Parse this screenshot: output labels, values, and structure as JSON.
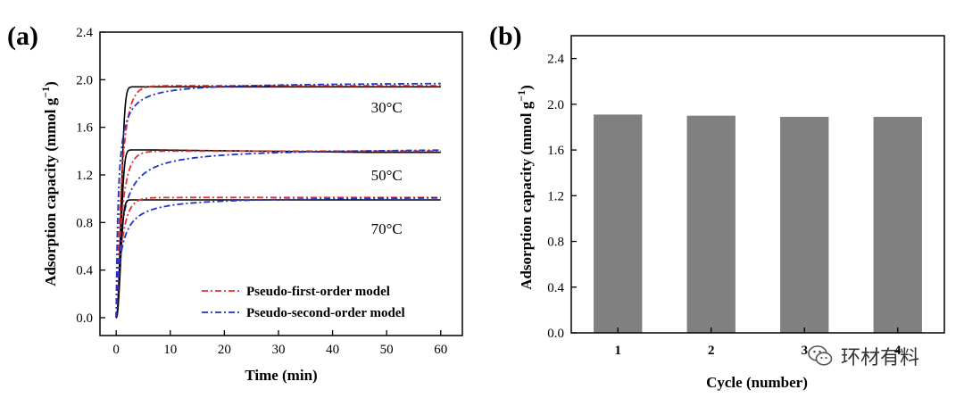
{
  "colors": {
    "pfo": "#e8312f",
    "pso": "#2233c8",
    "exp": "#000000",
    "bar": "#808080"
  },
  "watermark": {
    "text": "环材有料",
    "icon": "wechat-icon"
  },
  "chart_data": [
    {
      "id": "a",
      "panel_label": "(a)",
      "type": "line",
      "xlabel": "Time (min)",
      "ylabel": "Adsorption capacity (mmol g",
      "ylabel_exp": "−1",
      "ylabel_close": ")",
      "xlim": [
        -3,
        64
      ],
      "ylim": [
        -0.15,
        2.4
      ],
      "xticks": [
        0,
        10,
        20,
        30,
        40,
        50,
        60
      ],
      "yticks": [
        0.0,
        0.4,
        0.8,
        1.2,
        1.6,
        2.0,
        2.4
      ],
      "ytick_labels": [
        "0.0",
        "0.4",
        "0.8",
        "1.2",
        "1.6",
        "2.0",
        "2.4"
      ],
      "legend": [
        {
          "label": "Pseudo-first-order model",
          "color_key": "pfo"
        },
        {
          "label": "Pseudo-second-order model",
          "color_key": "pso"
        }
      ],
      "annotations": [
        {
          "text": "30°C",
          "x": 50,
          "y": 1.77
        },
        {
          "text": "50°C",
          "x": 50,
          "y": 1.2
        },
        {
          "text": "70°C",
          "x": 50,
          "y": 0.75
        }
      ],
      "series": [
        {
          "name": "30°C experimental",
          "model": "exp",
          "qe": 1.94,
          "k": 1.6,
          "tail": 1.94
        },
        {
          "name": "30°C pseudo-first-order",
          "model": "pfo",
          "qe": 1.95,
          "k": 0.9
        },
        {
          "name": "30°C pseudo-second-order",
          "model": "pso",
          "qe": 1.98,
          "k": 1.3
        },
        {
          "name": "50°C experimental",
          "model": "exp",
          "qe": 1.41,
          "k": 1.8,
          "tail": 1.39
        },
        {
          "name": "50°C pseudo-first-order",
          "model": "pfo",
          "qe": 1.4,
          "k": 0.9
        },
        {
          "name": "50°C pseudo-second-order",
          "model": "pso",
          "qe": 1.43,
          "k": 0.75
        },
        {
          "name": "70°C experimental",
          "model": "exp",
          "qe": 0.99,
          "k": 2.0,
          "tail": 0.99
        },
        {
          "name": "70°C pseudo-first-order",
          "model": "pfo",
          "qe": 1.01,
          "k": 0.9
        },
        {
          "name": "70°C pseudo-second-order",
          "model": "pso",
          "qe": 1.02,
          "k": 1.2
        }
      ]
    },
    {
      "id": "b",
      "panel_label": "(b)",
      "type": "bar",
      "xlabel": "Cycle (number)",
      "ylabel": "Adsorption capacity (mmol g",
      "ylabel_exp": "−1",
      "ylabel_close": ")",
      "categories": [
        "1",
        "2",
        "3",
        "4"
      ],
      "values": [
        1.91,
        1.9,
        1.89,
        1.89
      ],
      "ylim": [
        0,
        2.6
      ],
      "yticks": [
        0.0,
        0.4,
        0.8,
        1.2,
        1.6,
        2.0,
        2.4
      ],
      "ytick_labels": [
        "0.0",
        "0.4",
        "0.8",
        "1.2",
        "1.6",
        "2.0",
        "2.4"
      ]
    }
  ]
}
